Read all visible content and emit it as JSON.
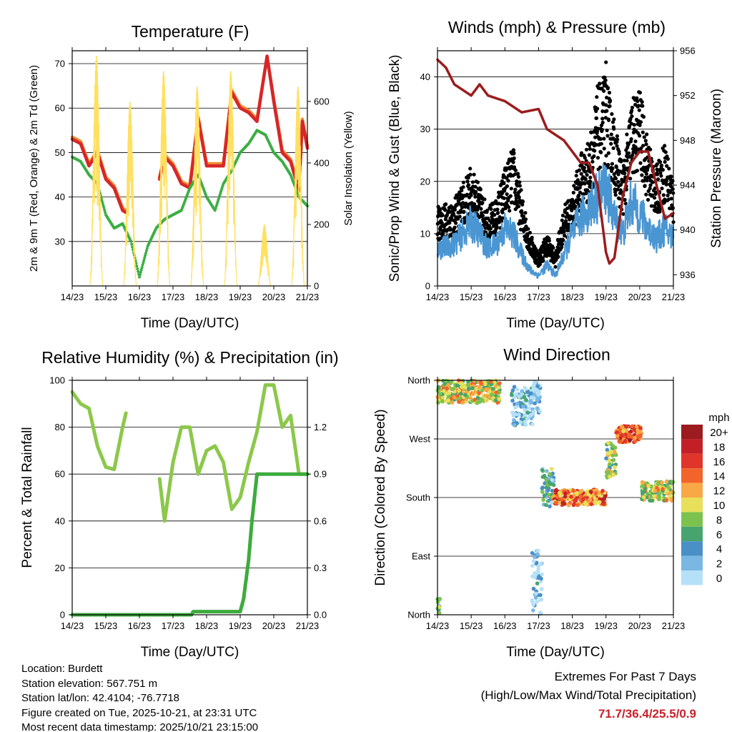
{
  "chart_data": [
    {
      "type": "line",
      "title": "Temperature (F)",
      "xlabel": "Time (Day/UTC)",
      "ylabel": "2m & 9m T (Red, Orange) & 2m Td (Green)",
      "y2label": "Solar Insolation (Yellow)",
      "xticks": [
        "14/23",
        "15/23",
        "16/23",
        "17/23",
        "18/23",
        "19/23",
        "20/23",
        "21/23"
      ],
      "xlim": [
        0,
        7
      ],
      "ylim": [
        20,
        72.9
      ],
      "yticks": [
        30,
        40,
        50,
        60,
        70
      ],
      "y2lim": [
        0,
        765
      ],
      "y2ticks": [
        0,
        200,
        400,
        600
      ],
      "x_units": "days since 14/23",
      "series": [
        {
          "name": "9m T",
          "color": "#f08a2c",
          "axis": "left",
          "t": [
            0,
            0.25,
            0.5,
            0.75,
            1.0,
            1.25,
            1.5,
            1.6,
            null,
            2.6,
            2.75,
            3.0,
            3.25,
            3.5,
            3.75,
            4.0,
            4.25,
            4.5,
            4.75,
            5.0,
            5.25,
            5.5,
            5.8,
            6.0,
            6.25,
            6.5,
            6.75,
            6.85,
            7.0
          ],
          "v": [
            53.5,
            52.5,
            47.5,
            50.5,
            44.5,
            42.5,
            37.5,
            37,
            null,
            44.5,
            49.5,
            47.5,
            43.5,
            42.5,
            58,
            47.5,
            47.5,
            47.5,
            64,
            60.5,
            59.5,
            57.5,
            71.5,
            62,
            50.5,
            48.5,
            42,
            57.5,
            51.5
          ]
        },
        {
          "name": "2m T",
          "color": "#d7262a",
          "axis": "left",
          "t": [
            0,
            0.25,
            0.5,
            0.75,
            1.0,
            1.25,
            1.5,
            1.6,
            null,
            2.6,
            2.75,
            3.0,
            3.25,
            3.5,
            3.75,
            4.0,
            4.25,
            4.5,
            4.75,
            5.0,
            5.25,
            5.5,
            5.8,
            6.0,
            6.25,
            6.5,
            6.75,
            6.85,
            7.0
          ],
          "v": [
            53,
            52,
            47,
            50,
            44,
            42,
            37,
            36.5,
            null,
            44,
            49,
            47,
            43,
            42,
            57.5,
            47,
            47,
            47,
            63.5,
            60,
            59,
            57,
            71.7,
            61.5,
            50,
            48,
            41.5,
            57,
            51
          ]
        },
        {
          "name": "2m Td",
          "color": "#3cae44",
          "axis": "left",
          "style": "dots",
          "t": [
            0,
            0.25,
            0.5,
            0.75,
            1.0,
            1.25,
            1.5,
            1.75,
            2.0,
            2.25,
            2.5,
            2.75,
            3.0,
            3.25,
            3.5,
            3.75,
            4.0,
            4.25,
            4.5,
            4.75,
            5.0,
            5.25,
            5.5,
            5.75,
            6.0,
            6.25,
            6.5,
            6.75,
            7.0
          ],
          "v": [
            49,
            48,
            45,
            43,
            36,
            33,
            34,
            30,
            22,
            29,
            33,
            35,
            36,
            37,
            42,
            45,
            40,
            37,
            43,
            46,
            50,
            52,
            55,
            54,
            50,
            48,
            45,
            40,
            38
          ]
        },
        {
          "name": "Solar Insolation",
          "color": "#ffe060",
          "axis": "right",
          "style": "daily",
          "peak_t": [
            0.72,
            1.72,
            2.72,
            3.72,
            4.72,
            5.72,
            6.72
          ],
          "peak_v": [
            750,
            600,
            700,
            650,
            700,
            200,
            650
          ]
        }
      ]
    },
    {
      "type": "scatter",
      "title": "Winds (mph) & Pressure (mb)",
      "xlabel": "Time (Day/UTC)",
      "ylabel": "Sonic/Prop Wind & Gust (Blue, Black)",
      "y2label": "Station Pressure (Maroon)",
      "xticks": [
        "14/23",
        "15/23",
        "16/23",
        "17/23",
        "18/23",
        "19/23",
        "20/23",
        "21/23"
      ],
      "xlim": [
        0,
        7
      ],
      "ylim": [
        0,
        45
      ],
      "yticks": [
        0,
        10,
        20,
        30,
        40
      ],
      "y2lim": [
        935,
        956
      ],
      "y2ticks": [
        936,
        940,
        944,
        948,
        952,
        956
      ],
      "series": [
        {
          "name": "Gust",
          "color": "#000000",
          "axis": "left",
          "style": "dots",
          "t": [
            0,
            0.5,
            1.0,
            1.25,
            1.5,
            1.75,
            2.0,
            2.25,
            2.5,
            2.75,
            3.0,
            3.25,
            3.5,
            3.75,
            4.0,
            4.25,
            4.5,
            4.75,
            5.0,
            5.25,
            5.5,
            5.75,
            6.0,
            6.25,
            6.5,
            6.75,
            7.0
          ],
          "v": [
            12,
            13,
            18,
            15,
            12,
            13,
            18,
            21,
            14,
            8,
            5,
            8,
            5,
            12,
            14,
            20,
            22,
            30,
            32,
            25,
            18,
            28,
            30,
            22,
            18,
            22,
            16
          ],
          "max": 42.8
        },
        {
          "name": "Sonic/Prop Wind",
          "color": "#4a96d2",
          "axis": "left",
          "t": [
            0,
            0.5,
            1.0,
            1.25,
            1.5,
            1.75,
            2.0,
            2.25,
            2.5,
            2.75,
            3.0,
            3.25,
            3.5,
            3.75,
            4.0,
            4.25,
            4.5,
            4.75,
            5.0,
            5.25,
            5.5,
            5.75,
            6.0,
            6.25,
            6.5,
            6.75,
            7.0
          ],
          "v": [
            7,
            8,
            12,
            10,
            7,
            8,
            11,
            10,
            6,
            3,
            2,
            4,
            2,
            6,
            10,
            13,
            15,
            17,
            19,
            13,
            10,
            16,
            14,
            11,
            9,
            11,
            9
          ]
        },
        {
          "name": "Station Pressure",
          "color": "#9b1c1c",
          "axis": "right",
          "t": [
            0,
            0.25,
            0.5,
            1.0,
            1.25,
            1.5,
            2.0,
            2.5,
            3.0,
            3.25,
            3.5,
            3.75,
            4.0,
            4.25,
            4.5,
            4.75,
            5.0,
            5.1,
            5.25,
            5.5,
            5.75,
            6.0,
            6.25,
            6.5,
            6.75,
            7.0
          ],
          "v": [
            955.2,
            954.5,
            953,
            952,
            953,
            952,
            951.5,
            950.5,
            950.8,
            949,
            948.5,
            948,
            947,
            946,
            946,
            944,
            938,
            937,
            937.5,
            943,
            946,
            947,
            947,
            944,
            941,
            941.5
          ]
        }
      ]
    },
    {
      "type": "line",
      "title": "Relative Humidity (%) & Precipitation (in)",
      "xlabel": "Time (Day/UTC)",
      "ylabel": "Percent & Total Rainfall",
      "xticks": [
        "14/23",
        "15/23",
        "16/23",
        "17/23",
        "18/23",
        "19/23",
        "20/23",
        "21/23"
      ],
      "xlim": [
        0,
        7
      ],
      "ylim": [
        0,
        100
      ],
      "yticks": [
        0,
        20,
        40,
        60,
        80,
        100
      ],
      "y2lim": [
        0,
        1.5
      ],
      "y2ticks": [
        "0.0",
        "0.3",
        "0.6",
        "0.9",
        "1.2"
      ],
      "series": [
        {
          "name": "Relative Humidity",
          "color": "#8cc84b",
          "axis": "left",
          "t": [
            0,
            0.25,
            0.5,
            0.75,
            1.0,
            1.25,
            1.5,
            1.6,
            null,
            2.6,
            2.75,
            3.0,
            3.25,
            3.5,
            3.75,
            4.0,
            4.25,
            4.5,
            4.75,
            5.0,
            5.25,
            5.5,
            5.75,
            6.0,
            6.25,
            6.5,
            6.75,
            7.0
          ],
          "v": [
            95,
            90,
            88,
            72,
            63,
            62,
            80,
            86,
            null,
            58,
            40,
            65,
            80,
            80,
            60,
            70,
            72,
            65,
            45,
            50,
            65,
            78,
            98,
            98,
            80,
            85,
            60,
            60
          ]
        },
        {
          "name": "Total Precipitation",
          "color": "#3dab3d",
          "axis": "right",
          "t": [
            0,
            3.55,
            3.6,
            5.0,
            5.1,
            5.25,
            5.35,
            5.5,
            7.0
          ],
          "v": [
            0,
            0,
            0.02,
            0.02,
            0.1,
            0.35,
            0.6,
            0.9,
            0.9
          ]
        }
      ]
    },
    {
      "type": "scatter",
      "title": "Wind Direction",
      "xlabel": "Time (Day/UTC)",
      "ylabel": "Direction (Colored By Speed)",
      "xticks": [
        "14/23",
        "15/23",
        "16/23",
        "17/23",
        "18/23",
        "19/23",
        "20/23",
        "21/23"
      ],
      "xlim": [
        0,
        7
      ],
      "ylim": [
        0,
        360
      ],
      "yticks": [
        {
          "v": 0,
          "label": "North"
        },
        {
          "v": 90,
          "label": "East"
        },
        {
          "v": 180,
          "label": "South"
        },
        {
          "v": 270,
          "label": "West"
        },
        {
          "v": 360,
          "label": "North"
        }
      ],
      "clusters": [
        {
          "t": [
            0,
            1.85
          ],
          "dir": [
            325,
            360
          ],
          "speed": 11
        },
        {
          "t": [
            0,
            0.08
          ],
          "dir": [
            0,
            25
          ],
          "speed": 6
        },
        {
          "t": [
            2.2,
            2.85
          ],
          "dir": [
            290,
            350
          ],
          "speed": 3
        },
        {
          "t": [
            2.85,
            3.05
          ],
          "dir": [
            310,
            360
          ],
          "speed": 2
        },
        {
          "t": [
            2.8,
            3.1
          ],
          "dir": [
            0,
            100
          ],
          "speed": 2
        },
        {
          "t": [
            3.1,
            3.45
          ],
          "dir": [
            165,
            225
          ],
          "speed": 6
        },
        {
          "t": [
            3.45,
            5.0
          ],
          "dir": [
            168,
            192
          ],
          "speed": 15
        },
        {
          "t": [
            5.0,
            5.3
          ],
          "dir": [
            210,
            265
          ],
          "speed": 9
        },
        {
          "t": [
            5.3,
            6.05
          ],
          "dir": [
            265,
            290
          ],
          "speed": 16
        },
        {
          "t": [
            6.05,
            7.0
          ],
          "dir": [
            175,
            205
          ],
          "speed": 10
        }
      ],
      "legend": {
        "title": "mph",
        "labels": [
          "20+",
          "18",
          "16",
          "14",
          "12",
          "10",
          "8",
          "6",
          "4",
          "2",
          "0"
        ],
        "colors": [
          "#9b1b1e",
          "#c21f26",
          "#e0352a",
          "#f2642a",
          "#f8a845",
          "#e8e05a",
          "#7cc24e",
          "#47a46e",
          "#4a8fc6",
          "#7ab8e3",
          "#b5e1f8"
        ]
      }
    }
  ],
  "station_info": {
    "location": "Location: Burdett",
    "elevation": "Station elevation: 567.751 m",
    "latlon": "Station lat/lon: 42.4104; -76.7718",
    "created": "Figure created on Tue, 2025-10-21, at 23:31 UTC",
    "latest": "Most recent data timestamp: 2025/10/21 23:15:00"
  },
  "extremes": {
    "title": "Extremes For Past 7 Days",
    "subtitle": "(High/Low/Max Wind/Total Precipitation)",
    "values": "71.7/36.4/25.5/0.9"
  }
}
